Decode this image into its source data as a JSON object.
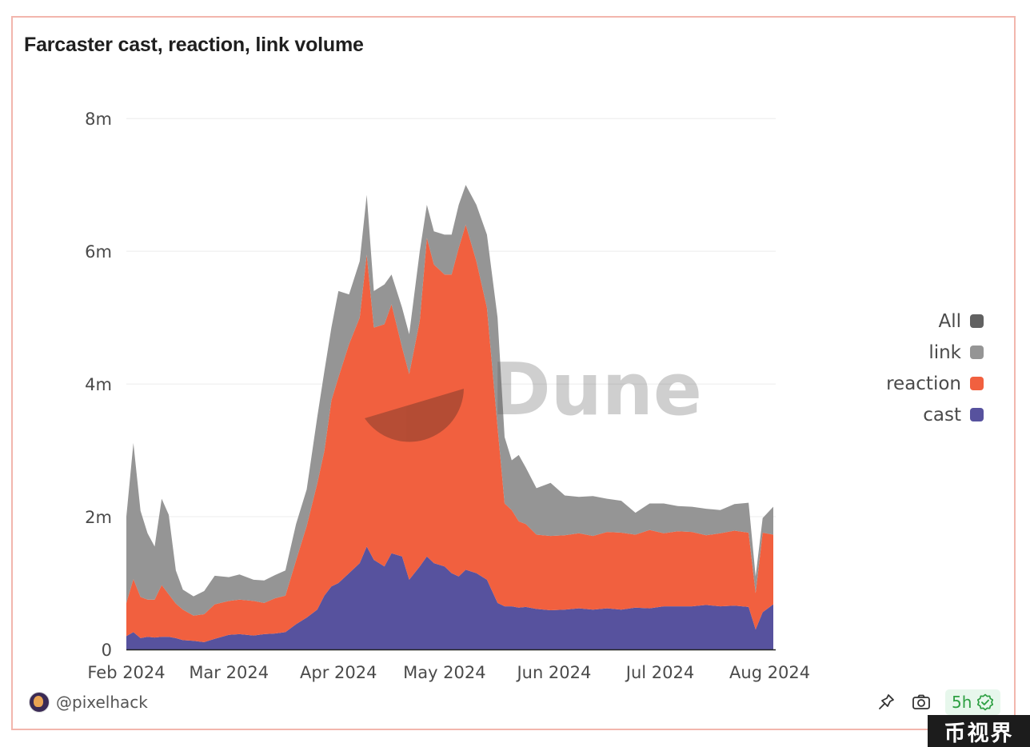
{
  "title": "Farcaster cast, reaction, link volume",
  "footer": {
    "username": "@pixelhack",
    "refresh_badge": "5h",
    "icons": [
      "pin-icon",
      "camera-icon",
      "verified-check-icon"
    ]
  },
  "watermark": {
    "text": "Dune",
    "corner_text": "币视界"
  },
  "legend": [
    {
      "label": "All",
      "color": "#616161"
    },
    {
      "label": "link",
      "color": "#959595"
    },
    {
      "label": "reaction",
      "color": "#f1603f"
    },
    {
      "label": "cast",
      "color": "#57529e"
    }
  ],
  "chart_data": {
    "type": "area",
    "stacked": true,
    "title": "Farcaster cast, reaction, link volume",
    "xlabel": "",
    "ylabel": "",
    "x_range": [
      "2024-02-01",
      "2024-08-02"
    ],
    "x_ticks": [
      "Feb 2024",
      "Mar 2024",
      "Apr 2024",
      "May 2024",
      "Jun 2024",
      "Jul 2024",
      "Aug 2024"
    ],
    "ylim": [
      0,
      8400000
    ],
    "y_ticks": [
      {
        "value": 0,
        "label": "0"
      },
      {
        "value": 2000000,
        "label": "2m"
      },
      {
        "value": 4000000,
        "label": "4m"
      },
      {
        "value": 6000000,
        "label": "6m"
      },
      {
        "value": 8000000,
        "label": "8m"
      }
    ],
    "grid": true,
    "legend_position": "right",
    "dates": [
      "2024-02-01",
      "2024-02-03",
      "2024-02-05",
      "2024-02-07",
      "2024-02-09",
      "2024-02-11",
      "2024-02-13",
      "2024-02-15",
      "2024-02-17",
      "2024-02-20",
      "2024-02-23",
      "2024-02-26",
      "2024-03-01",
      "2024-03-04",
      "2024-03-08",
      "2024-03-11",
      "2024-03-14",
      "2024-03-17",
      "2024-03-20",
      "2024-03-23",
      "2024-03-26",
      "2024-03-28",
      "2024-03-30",
      "2024-04-01",
      "2024-04-04",
      "2024-04-07",
      "2024-04-09",
      "2024-04-11",
      "2024-04-14",
      "2024-04-16",
      "2024-04-19",
      "2024-04-21",
      "2024-04-24",
      "2024-04-26",
      "2024-04-28",
      "2024-05-01",
      "2024-05-03",
      "2024-05-05",
      "2024-05-07",
      "2024-05-10",
      "2024-05-13",
      "2024-05-16",
      "2024-05-18",
      "2024-05-20",
      "2024-05-22",
      "2024-05-24",
      "2024-05-27",
      "2024-05-31",
      "2024-06-04",
      "2024-06-08",
      "2024-06-12",
      "2024-06-16",
      "2024-06-20",
      "2024-06-24",
      "2024-06-28",
      "2024-07-02",
      "2024-07-06",
      "2024-07-10",
      "2024-07-14",
      "2024-07-18",
      "2024-07-22",
      "2024-07-26",
      "2024-07-28",
      "2024-07-30",
      "2024-08-02"
    ],
    "series": [
      {
        "name": "cast",
        "color": "#57529e",
        "values": [
          200000,
          260000,
          170000,
          190000,
          180000,
          190000,
          190000,
          170000,
          140000,
          130000,
          110000,
          160000,
          220000,
          230000,
          210000,
          230000,
          240000,
          260000,
          380000,
          480000,
          600000,
          810000,
          950000,
          1000000,
          1150000,
          1300000,
          1550000,
          1350000,
          1250000,
          1450000,
          1400000,
          1050000,
          1250000,
          1400000,
          1300000,
          1250000,
          1150000,
          1100000,
          1200000,
          1150000,
          1050000,
          700000,
          650000,
          650000,
          630000,
          640000,
          610000,
          590000,
          600000,
          620000,
          600000,
          620000,
          600000,
          630000,
          620000,
          650000,
          650000,
          650000,
          670000,
          650000,
          660000,
          640000,
          300000,
          560000,
          680000
        ]
      },
      {
        "name": "reaction",
        "color": "#f1603f",
        "values": [
          500000,
          800000,
          620000,
          560000,
          570000,
          780000,
          640000,
          520000,
          460000,
          380000,
          420000,
          520000,
          510000,
          520000,
          520000,
          470000,
          530000,
          550000,
          960000,
          1380000,
          1900000,
          2180000,
          2800000,
          3100000,
          3450000,
          3700000,
          4400000,
          3500000,
          3650000,
          3750000,
          3150000,
          3100000,
          3700000,
          4800000,
          4500000,
          4400000,
          4500000,
          4950000,
          5200000,
          4700000,
          4100000,
          2650000,
          1550000,
          1450000,
          1300000,
          1250000,
          1120000,
          1120000,
          1120000,
          1130000,
          1110000,
          1150000,
          1160000,
          1100000,
          1180000,
          1100000,
          1130000,
          1120000,
          1050000,
          1100000,
          1130000,
          1120000,
          550000,
          1200000,
          1050000
        ]
      },
      {
        "name": "link",
        "color": "#959595",
        "values": [
          1300000,
          2050000,
          1300000,
          1000000,
          800000,
          1300000,
          1200000,
          500000,
          300000,
          290000,
          350000,
          430000,
          360000,
          380000,
          320000,
          340000,
          350000,
          380000,
          550000,
          550000,
          1000000,
          1200000,
          1100000,
          1300000,
          750000,
          850000,
          900000,
          550000,
          600000,
          450000,
          600000,
          600000,
          1050000,
          500000,
          500000,
          600000,
          600000,
          650000,
          600000,
          850000,
          1100000,
          1650000,
          1000000,
          750000,
          1000000,
          850000,
          700000,
          800000,
          600000,
          550000,
          600000,
          500000,
          480000,
          330000,
          400000,
          450000,
          380000,
          380000,
          400000,
          350000,
          400000,
          450000,
          250000,
          220000,
          420000
        ]
      }
    ]
  }
}
